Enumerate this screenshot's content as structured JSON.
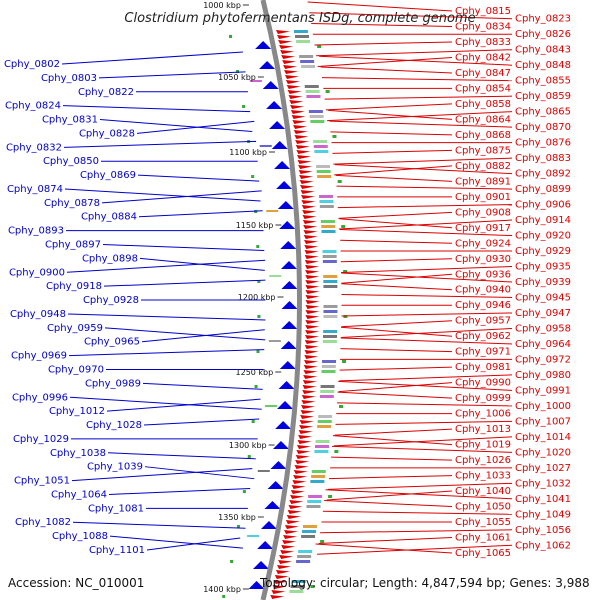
{
  "title": "Clostridium phytofermentans ISDg, complete genome",
  "footer": {
    "accession": "Accession: NC_010001",
    "summary": "Topology: circular; Length: 4,847,594 bp; Genes: 3,988"
  },
  "colors": {
    "left_labels": "#0000cc",
    "right_labels": "#dd0000",
    "backbone": "#888888",
    "forward_arrows": "#e00000",
    "reverse_arrows": "#0000e0",
    "tick_marks": "#33aa33"
  },
  "kbp_marks": [
    "1000 kbp",
    "1050 kbp",
    "1100 kbp",
    "1150 kbp",
    "1200 kbp",
    "1250 kbp",
    "1300 kbp",
    "1350 kbp",
    "1400 kbp"
  ],
  "left_labels": [
    "Cphy_0802",
    "Cphy_0803",
    "Cphy_0822",
    "Cphy_0824",
    "Cphy_0831",
    "Cphy_0828",
    "Cphy_0832",
    "Cphy_0850",
    "Cphy_0869",
    "Cphy_0874",
    "Cphy_0878",
    "Cphy_0884",
    "Cphy_0893",
    "Cphy_0897",
    "Cphy_0898",
    "Cphy_0900",
    "Cphy_0918",
    "Cphy_0928",
    "Cphy_0948",
    "Cphy_0959",
    "Cphy_0965",
    "Cphy_0969",
    "Cphy_0970",
    "Cphy_0989",
    "Cphy_0996",
    "Cphy_1012",
    "Cphy_1028",
    "Cphy_1029",
    "Cphy_1038",
    "Cphy_1039",
    "Cphy_1051",
    "Cphy_1064",
    "Cphy_1081",
    "Cphy_1082",
    "Cphy_1088",
    "Cphy_1101"
  ],
  "right_labels": [
    "Cphy_0815",
    "Cphy_0823",
    "Cphy_0834",
    "Cphy_0826",
    "Cphy_0833",
    "Cphy_0843",
    "Cphy_0842",
    "Cphy_0848",
    "Cphy_0847",
    "Cphy_0855",
    "Cphy_0854",
    "Cphy_0859",
    "Cphy_0858",
    "Cphy_0865",
    "Cphy_0864",
    "Cphy_0870",
    "Cphy_0868",
    "Cphy_0876",
    "Cphy_0875",
    "Cphy_0883",
    "Cphy_0882",
    "Cphy_0892",
    "Cphy_0891",
    "Cphy_0899",
    "Cphy_0901",
    "Cphy_0906",
    "Cphy_0908",
    "Cphy_0914",
    "Cphy_0917",
    "Cphy_0920",
    "Cphy_0924",
    "Cphy_0929",
    "Cphy_0930",
    "Cphy_0935",
    "Cphy_0936",
    "Cphy_0939",
    "Cphy_0940",
    "Cphy_0945",
    "Cphy_0946",
    "Cphy_0947",
    "Cphy_0957",
    "Cphy_0958",
    "Cphy_0962",
    "Cphy_0964",
    "Cphy_0971",
    "Cphy_0972",
    "Cphy_0981",
    "Cphy_0980",
    "Cphy_0990",
    "Cphy_0991",
    "Cphy_0999",
    "Cphy_1000",
    "Cphy_1006",
    "Cphy_1007",
    "Cphy_1013",
    "Cphy_1014",
    "Cphy_1019",
    "Cphy_1020",
    "Cphy_1026",
    "Cphy_1027",
    "Cphy_1033",
    "Cphy_1032",
    "Cphy_1040",
    "Cphy_1041",
    "Cphy_1050",
    "Cphy_1049",
    "Cphy_1055",
    "Cphy_1056",
    "Cphy_1061",
    "Cphy_1062",
    "Cphy_1065"
  ]
}
